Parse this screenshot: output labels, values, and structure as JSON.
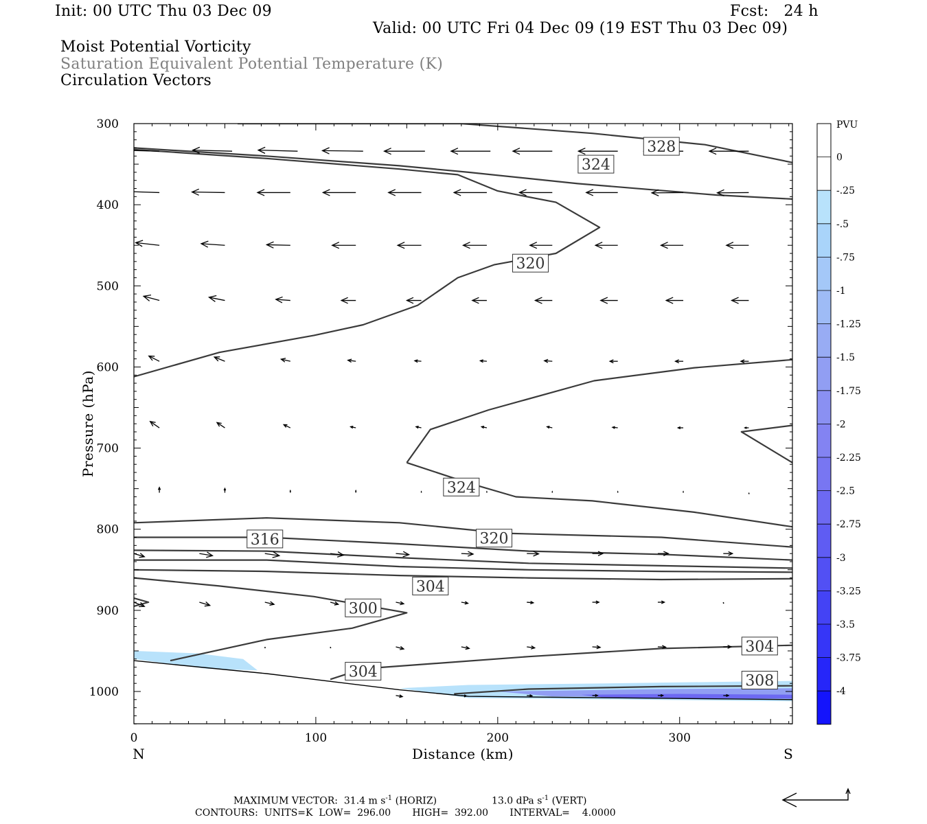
{
  "header": {
    "init": "Init: 00 UTC Thu 03 Dec 09",
    "fcst": "Fcst:   24 h",
    "valid": "Valid: 00 UTC Fri 04 Dec 09 (19 EST Thu 03 Dec 09)",
    "field1": "Moist Potential Vorticity",
    "field2": "Saturation Equivalent Potential Temperature (K)",
    "field3": "Circulation Vectors"
  },
  "footer": {
    "max_vector_prefix": "MAXIMUM VECTOR:  31.4 m s",
    "horiz_suffix": " (HORIZ)",
    "vert_prefix": "13.0 dPa s",
    "vert_suffix": " (VERT)",
    "exponent": "-1",
    "contours": "CONTOURS:  UNITS=K  LOW=  296.00       HIGH=  392.00       INTERVAL=    4.0000"
  },
  "colors": {
    "contour": "#3a3a3a",
    "pv_fill_weak": "#b8e2fb",
    "pv_fill_mid": "#8fb2f5",
    "pv_fill_strong": "#5b5cf0"
  },
  "chart_data": {
    "type": "contour",
    "title": "Moist Potential Vorticity",
    "xlabel": "Distance (km)",
    "ylabel": "Pressure (hPa)",
    "xlim": [
      0,
      362
    ],
    "ylim": [
      1040,
      300
    ],
    "x_ticks": [
      0,
      100,
      200,
      300
    ],
    "y_ticks": [
      300,
      400,
      500,
      600,
      700,
      800,
      900,
      1000
    ],
    "x_end_labels": {
      "left": "N",
      "right": "S"
    },
    "colorbar": {
      "title": "PVU",
      "levels": [
        "0",
        "-.25",
        "-.5",
        "-.75",
        "-1",
        "-1.25",
        "-1.5",
        "-1.75",
        "-2",
        "-2.25",
        "-2.5",
        "-2.75",
        "-3",
        "-3.25",
        "-3.5",
        "-3.75",
        "-4"
      ],
      "colors": [
        "#ffffff",
        "#ffffff",
        "#b8e2fb",
        "#a9d4fa",
        "#a4c8f8",
        "#9ebbf6",
        "#98acf4",
        "#919ef3",
        "#8a90f2",
        "#8383f2",
        "#7876f2",
        "#6d69f2",
        "#5f5cf3",
        "#5250f4",
        "#4443f5",
        "#3636f7",
        "#2626f9",
        "#1414fc"
      ]
    },
    "contour_labels": [
      {
        "text": "328",
        "x": 290,
        "p": 328
      },
      {
        "text": "324",
        "x": 254,
        "p": 350
      },
      {
        "text": "320",
        "x": 218,
        "p": 472
      },
      {
        "text": "324",
        "x": 180,
        "p": 748
      },
      {
        "text": "316",
        "x": 72,
        "p": 812
      },
      {
        "text": "320",
        "x": 198,
        "p": 811
      },
      {
        "text": "304",
        "x": 163,
        "p": 870
      },
      {
        "text": "300",
        "x": 126,
        "p": 897
      },
      {
        "text": "304",
        "x": 344,
        "p": 944
      },
      {
        "text": "304",
        "x": 126,
        "p": 975
      },
      {
        "text": "308",
        "x": 344,
        "p": 986
      }
    ],
    "contours": [
      [
        [
          57,
          300
        ],
        [
          180,
          300
        ],
        [
          252,
          312
        ],
        [
          314,
          326
        ],
        [
          362,
          348
        ]
      ],
      [
        [
          0,
          330
        ],
        [
          73,
          340
        ],
        [
          146,
          352
        ],
        [
          184,
          360
        ],
        [
          244,
          374
        ],
        [
          320,
          388
        ],
        [
          362,
          393
        ]
      ],
      [
        [
          0,
          612
        ],
        [
          47,
          582
        ],
        [
          99,
          561
        ],
        [
          126,
          548
        ],
        [
          156,
          524
        ],
        [
          178,
          490
        ],
        [
          198,
          474
        ],
        [
          232,
          460
        ],
        [
          256,
          428
        ],
        [
          232,
          397
        ],
        [
          200,
          383
        ],
        [
          178,
          363
        ],
        [
          146,
          356
        ],
        [
          73,
          343
        ],
        [
          0,
          332
        ]
      ],
      [
        [
          150,
          718
        ],
        [
          163,
          677
        ],
        [
          195,
          653
        ],
        [
          253,
          617
        ],
        [
          308,
          601
        ],
        [
          362,
          591
        ]
      ],
      [
        [
          150,
          718
        ],
        [
          184,
          743
        ],
        [
          210,
          760
        ],
        [
          252,
          765
        ],
        [
          308,
          779
        ],
        [
          362,
          797
        ]
      ],
      [
        [
          362,
          672
        ],
        [
          334,
          680
        ],
        [
          362,
          718
        ]
      ],
      [
        [
          0,
          792
        ],
        [
          73,
          786
        ],
        [
          146,
          792
        ],
        [
          204,
          805
        ],
        [
          290,
          810
        ],
        [
          362,
          822
        ]
      ],
      [
        [
          0,
          810
        ],
        [
          73,
          810
        ],
        [
          146,
          818
        ],
        [
          217,
          827
        ],
        [
          290,
          831
        ],
        [
          362,
          838
        ]
      ],
      [
        [
          0,
          826
        ],
        [
          73,
          827
        ],
        [
          146,
          835
        ],
        [
          217,
          842
        ],
        [
          290,
          845
        ],
        [
          362,
          848
        ]
      ],
      [
        [
          0,
          838
        ],
        [
          73,
          838
        ],
        [
          146,
          846
        ],
        [
          217,
          850
        ],
        [
          290,
          852
        ],
        [
          362,
          853
        ]
      ],
      [
        [
          0,
          850
        ],
        [
          73,
          852
        ],
        [
          146,
          857
        ],
        [
          217,
          860
        ],
        [
          290,
          862
        ],
        [
          362,
          861
        ]
      ],
      [
        [
          0,
          860
        ],
        [
          47,
          870
        ],
        [
          99,
          883
        ],
        [
          150,
          903
        ],
        [
          120,
          922
        ],
        [
          73,
          936
        ],
        [
          20,
          962
        ]
      ],
      [
        [
          0,
          895
        ],
        [
          8,
          890
        ],
        [
          0,
          885
        ]
      ],
      [
        [
          108,
          985
        ],
        [
          126,
          972
        ],
        [
          217,
          957
        ],
        [
          290,
          947
        ],
        [
          362,
          943
        ]
      ],
      [
        [
          176,
          1003
        ],
        [
          217,
          997
        ],
        [
          290,
          994
        ],
        [
          362,
          993
        ]
      ]
    ],
    "terrain": [
      [
        0,
        962
      ],
      [
        73,
        978
      ],
      [
        146,
        998
      ],
      [
        184,
        1006
      ],
      [
        362,
        1010
      ]
    ],
    "pv_regions": [
      {
        "level": "-.25",
        "points": [
          [
            0,
            950
          ],
          [
            35,
            953
          ],
          [
            60,
            960
          ],
          [
            68,
            974
          ],
          [
            40,
            972
          ],
          [
            0,
            960
          ]
        ]
      },
      {
        "level": "-.25",
        "points": [
          [
            146,
            996
          ],
          [
            184,
            992
          ],
          [
            260,
            990
          ],
          [
            362,
            987
          ],
          [
            362,
            1012
          ],
          [
            184,
            1008
          ]
        ]
      },
      {
        "level": "-1.5",
        "points": [
          [
            200,
            1000
          ],
          [
            290,
            997
          ],
          [
            362,
            996
          ],
          [
            362,
            1008
          ],
          [
            230,
            1006
          ]
        ]
      },
      {
        "level": "-2.5",
        "points": [
          [
            246,
            1004
          ],
          [
            300,
            1003
          ],
          [
            362,
            1004
          ],
          [
            362,
            1009
          ],
          [
            260,
            1008
          ]
        ]
      }
    ],
    "vector_scale": {
      "u": 31.4,
      "w": 13.0
    },
    "vector_rows": [
      {
        "p": 334,
        "xs": [
          14,
          54,
          90,
          126,
          160,
          196,
          230,
          266,
          302,
          338
        ],
        "u": [
          -30,
          -30,
          -30,
          -31,
          -31,
          -30,
          -30,
          -30,
          -30,
          -30
        ],
        "w": [
          -1,
          -1,
          -1,
          -0.5,
          0,
          0,
          0,
          0,
          0,
          0
        ]
      },
      {
        "p": 385,
        "xs": [
          14,
          50,
          86,
          122,
          158,
          194,
          230,
          266,
          302,
          338
        ],
        "u": [
          -26,
          -25,
          -25,
          -25,
          -25,
          -25,
          -25,
          -24,
          -24,
          -24
        ],
        "w": [
          -1,
          -0.5,
          0,
          0,
          0,
          0,
          0,
          0,
          0.3,
          0.3
        ]
      },
      {
        "p": 450,
        "xs": [
          14,
          50,
          86,
          122,
          158,
          194,
          230,
          266,
          302,
          338
        ],
        "u": [
          -18,
          -18,
          -18,
          -18,
          -18,
          -18,
          -17,
          -17,
          -17,
          -17
        ],
        "w": [
          -2.5,
          -1.5,
          -0.5,
          0,
          0,
          0,
          0,
          0,
          0,
          0
        ]
      },
      {
        "p": 518,
        "xs": [
          14,
          50,
          86,
          122,
          158,
          194,
          230,
          266,
          302,
          338
        ],
        "u": [
          -12,
          -12,
          -11,
          -11,
          -11,
          -11,
          -13,
          -13,
          -13,
          -13
        ],
        "w": [
          -4,
          -3,
          -1,
          0,
          0,
          0,
          0,
          0,
          0,
          0
        ]
      },
      {
        "p": 593,
        "xs": [
          14,
          50,
          86,
          122,
          158,
          194,
          230,
          266,
          302,
          338
        ],
        "u": [
          -8,
          -8,
          -7,
          -6,
          -5,
          -5,
          -6,
          -6,
          -6,
          -6
        ],
        "w": [
          -5,
          -4,
          -2,
          -1,
          -0.5,
          -0.5,
          -0.5,
          0,
          0,
          0
        ]
      },
      {
        "p": 675,
        "xs": [
          14,
          50,
          86,
          122,
          158,
          194,
          230,
          266,
          302,
          338
        ],
        "u": [
          -7,
          -6,
          -5,
          -4,
          -4,
          -4,
          -4,
          -4,
          -4,
          -3
        ],
        "w": [
          -6,
          -5,
          -3,
          -1,
          -1,
          -1,
          -1,
          -0.5,
          0,
          0
        ]
      },
      {
        "p": 755,
        "xs": [
          14,
          50,
          86,
          122,
          158,
          194,
          230,
          266,
          302,
          338
        ],
        "u": [
          0,
          0,
          0,
          0,
          0,
          0,
          0,
          0,
          0,
          0
        ],
        "w": [
          -5,
          -4,
          -2,
          -2,
          -1,
          -1,
          -1,
          -1,
          -1,
          -0.5
        ]
      },
      {
        "p": 830,
        "xs": [
          0,
          36,
          72,
          108,
          144,
          180,
          216,
          252,
          288,
          324
        ],
        "u": [
          8,
          10,
          11,
          10,
          10,
          9,
          9,
          8,
          8,
          7
        ],
        "w": [
          3,
          2,
          2,
          1.5,
          1,
          0.5,
          0.3,
          0,
          0,
          0
        ]
      },
      {
        "p": 890,
        "xs": [
          0,
          36,
          72,
          108,
          144,
          180,
          216,
          252,
          288,
          324
        ],
        "u": [
          8,
          8,
          7,
          6,
          6,
          5,
          5,
          5,
          5,
          0
        ],
        "w": [
          4,
          3,
          2,
          2,
          1.5,
          1,
          0.5,
          0,
          0,
          0
        ]
      },
      {
        "p": 945,
        "xs": [
          72,
          108,
          144,
          180,
          216,
          252,
          288,
          324
        ],
        "u": [
          0,
          0,
          6,
          6,
          6,
          6,
          6,
          6
        ],
        "w": [
          0,
          0,
          2,
          1.5,
          1,
          0.5,
          0.3,
          0
        ]
      },
      {
        "p": 1005,
        "xs": [
          144,
          180,
          216,
          252,
          288,
          324
        ],
        "u": [
          5,
          4,
          4,
          4,
          4,
          4
        ],
        "w": [
          1,
          0.5,
          0.3,
          0,
          0,
          0
        ]
      }
    ]
  }
}
